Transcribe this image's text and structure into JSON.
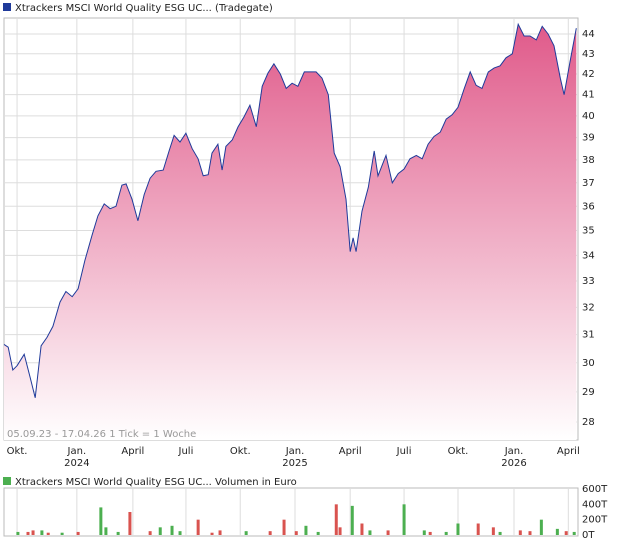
{
  "chart_data": [
    {
      "type": "area",
      "log_scale": true,
      "grid": true,
      "fill_color": "#e05a8a",
      "note": "05.09.23 - 17.04.26   1 Tick = 1 Woche",
      "series": [
        {
          "name": "Xtrackers MSCI World Quality ESG UC... (Tradegate)",
          "color": "#1f3a9a",
          "x": [
            0,
            1,
            2.1,
            3.1,
            4.8,
            6.2,
            7.4,
            8.8,
            10.2,
            11.6,
            13.3,
            14.7,
            16.2,
            17.6,
            19.2,
            20.9,
            22.3,
            23.8,
            25.2,
            26.6,
            28,
            29,
            30.4,
            31.8,
            33.3,
            34.7,
            36.1,
            37.8,
            39.2,
            40.4,
            41.8,
            43.2,
            44.7,
            46.1,
            47.3,
            48.5,
            49.4,
            50.8,
            51.8,
            52.7,
            54.2,
            55.6,
            57,
            58.4,
            59.9,
            61.3,
            62.7,
            64.1,
            65.6,
            67,
            68.4,
            69.8,
            71.3,
            72.7,
            74.1,
            75.5,
            77,
            78.4,
            79.8,
            81.2,
            82.2,
            82.9,
            83.6,
            85,
            86.5,
            87.9,
            88.8,
            90.7,
            92.2,
            93.6,
            95,
            96.4,
            97.9,
            99.3,
            100.7,
            102.1,
            103.6,
            105,
            106.4,
            107.8,
            109.3,
            110.7,
            112.1,
            113.5,
            115,
            116.4,
            117.8,
            119.2,
            120.7,
            122.1,
            123.5,
            124.9,
            126.4,
            127.8,
            129.2,
            130.6,
            132.1,
            133,
            134.4,
            135.9
          ],
          "values": [
            30.65,
            30.55,
            29.75,
            29.9,
            30.3,
            29.5,
            28.8,
            30.6,
            30.9,
            31.3,
            32.2,
            32.6,
            32.4,
            32.7,
            33.8,
            34.8,
            35.6,
            36.1,
            35.9,
            36.0,
            36.9,
            36.95,
            36.3,
            35.4,
            36.5,
            37.2,
            37.5,
            37.55,
            38.4,
            39.1,
            38.8,
            39.2,
            38.5,
            38.05,
            37.3,
            37.35,
            38.3,
            38.7,
            37.55,
            38.6,
            38.9,
            39.5,
            39.95,
            40.5,
            39.5,
            41.4,
            42.05,
            42.5,
            42.0,
            41.3,
            41.55,
            41.4,
            42.1,
            42.1,
            42.1,
            41.8,
            41.0,
            38.3,
            37.7,
            36.3,
            34.15,
            34.7,
            34.15,
            35.8,
            36.8,
            38.4,
            37.3,
            38.2,
            37.0,
            37.4,
            37.6,
            38.05,
            38.2,
            38.05,
            38.7,
            39.05,
            39.25,
            39.85,
            40.05,
            40.4,
            41.3,
            42.1,
            41.45,
            41.3,
            42.1,
            42.3,
            42.4,
            42.8,
            43.0,
            44.5,
            43.9,
            43.9,
            43.7,
            44.4,
            44.0,
            43.4,
            41.8,
            41.0,
            42.6,
            44.3
          ]
        }
      ],
      "xlim": [
        0,
        136.3
      ],
      "ylim": [
        27.42,
        44.83
      ],
      "yticks": [
        28,
        29,
        30,
        31,
        32,
        33,
        34,
        35,
        36,
        37,
        38,
        39,
        40,
        41,
        42,
        43,
        44
      ],
      "xticks": [
        {
          "value": 3.1,
          "label": "Okt."
        },
        {
          "value": 17.3,
          "label": "Jan.",
          "year": "2024"
        },
        {
          "value": 30.6,
          "label": "April"
        },
        {
          "value": 43.2,
          "label": "Juli"
        },
        {
          "value": 56.1,
          "label": "Okt."
        },
        {
          "value": 69.1,
          "label": "Jan.",
          "year": "2025"
        },
        {
          "value": 82.2,
          "label": "April"
        },
        {
          "value": 95,
          "label": "Juli"
        },
        {
          "value": 107.8,
          "label": "Okt."
        },
        {
          "value": 121.1,
          "label": "Jan.",
          "year": "2026"
        },
        {
          "value": 134,
          "label": "April"
        }
      ]
    },
    {
      "type": "bar",
      "title": "Xtrackers MSCI World Quality ESG UC... Volumen in Euro",
      "legend_color": "#4caf50",
      "xlim": [
        0,
        136.3
      ],
      "ylim": [
        0,
        600000
      ],
      "yticks": [
        {
          "value": 0,
          "label": "0T"
        },
        {
          "value": 200000,
          "label": "200T"
        },
        {
          "value": 400000,
          "label": "400T"
        },
        {
          "value": 600000,
          "label": "600T"
        }
      ],
      "series": [
        {
          "color": "#4caf50",
          "x": [
            3.3,
            9,
            13.8,
            23,
            24.2,
            27.1,
            37.1,
            39.9,
            41.8,
            57.5,
            71.7,
            74.6,
            82.7,
            86.9,
            95,
            99.8,
            105,
            107.8,
            117.8,
            127.6,
            131.4,
            135.4
          ],
          "values": [
            40000,
            60000,
            30000,
            360000,
            100000,
            40000,
            100000,
            120000,
            50000,
            50000,
            120000,
            40000,
            380000,
            60000,
            400000,
            60000,
            40000,
            150000,
            40000,
            200000,
            80000,
            40000
          ]
        },
        {
          "color": "#d9534f",
          "x": [
            5.7,
            6.9,
            10.5,
            17.6,
            29.9,
            34.7,
            46.1,
            49.4,
            51.3,
            63.2,
            66.5,
            69.4,
            78.9,
            79.8,
            85,
            91.2,
            101.2,
            112.6,
            116.2,
            122.6,
            124.9,
            133.5
          ],
          "values": [
            40000,
            60000,
            30000,
            40000,
            300000,
            50000,
            200000,
            30000,
            60000,
            50000,
            200000,
            50000,
            400000,
            100000,
            150000,
            60000,
            40000,
            150000,
            100000,
            60000,
            50000,
            50000
          ]
        }
      ]
    }
  ]
}
